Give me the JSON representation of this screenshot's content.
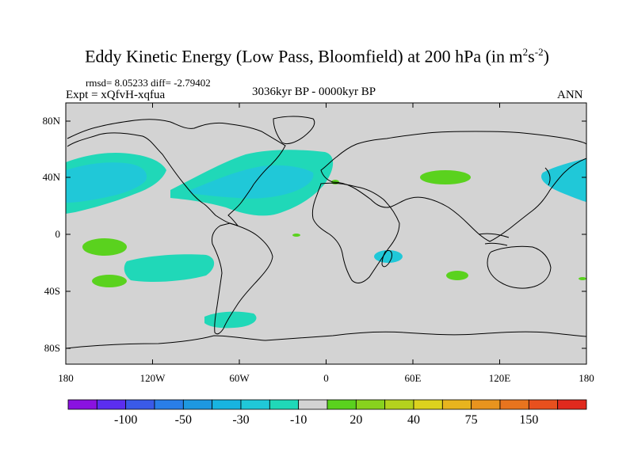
{
  "title": {
    "main": "Eddy Kinetic Energy (Low Pass, Bloomfield) at 200 hPa (in m",
    "sup1": "2",
    "s": "s",
    "sup2": "-2",
    "close": ")"
  },
  "stats": "rmsd= 8.05233 diff= -2.79402",
  "experiment": "Expt = xQfvH-xqfua",
  "period": "3036kyr BP - 0000kyr BP",
  "season": "ANN",
  "map": {
    "projection": "cylindrical equidistant",
    "lon_range": [
      -180,
      180
    ],
    "lat_range": [
      -90,
      90
    ],
    "background": "#d3d3d3",
    "y_ticks": [
      "80N",
      "40N",
      "0",
      "40S",
      "80S"
    ],
    "x_ticks": [
      "180",
      "120W",
      "60W",
      "0",
      "60E",
      "120E",
      "180"
    ]
  },
  "colorbar": {
    "colors": [
      "#8a12e0",
      "#5b2ef0",
      "#3a5ae8",
      "#2a7ee8",
      "#1e98e0",
      "#18b4e0",
      "#20c8d8",
      "#20d8b8",
      "#d3d3d3",
      "#5ad21e",
      "#88d21e",
      "#b4d21e",
      "#dcd21e",
      "#e8b41e",
      "#e8941e",
      "#e8741e",
      "#e8501e",
      "#e02a1e"
    ],
    "labels": [
      "-100",
      "-50",
      "-30",
      "-10",
      "20",
      "40",
      "75",
      "150"
    ]
  },
  "fill_colors": {
    "cyan": "#20c8d8",
    "teal": "#20d8b8",
    "green": "#5ad21e"
  }
}
